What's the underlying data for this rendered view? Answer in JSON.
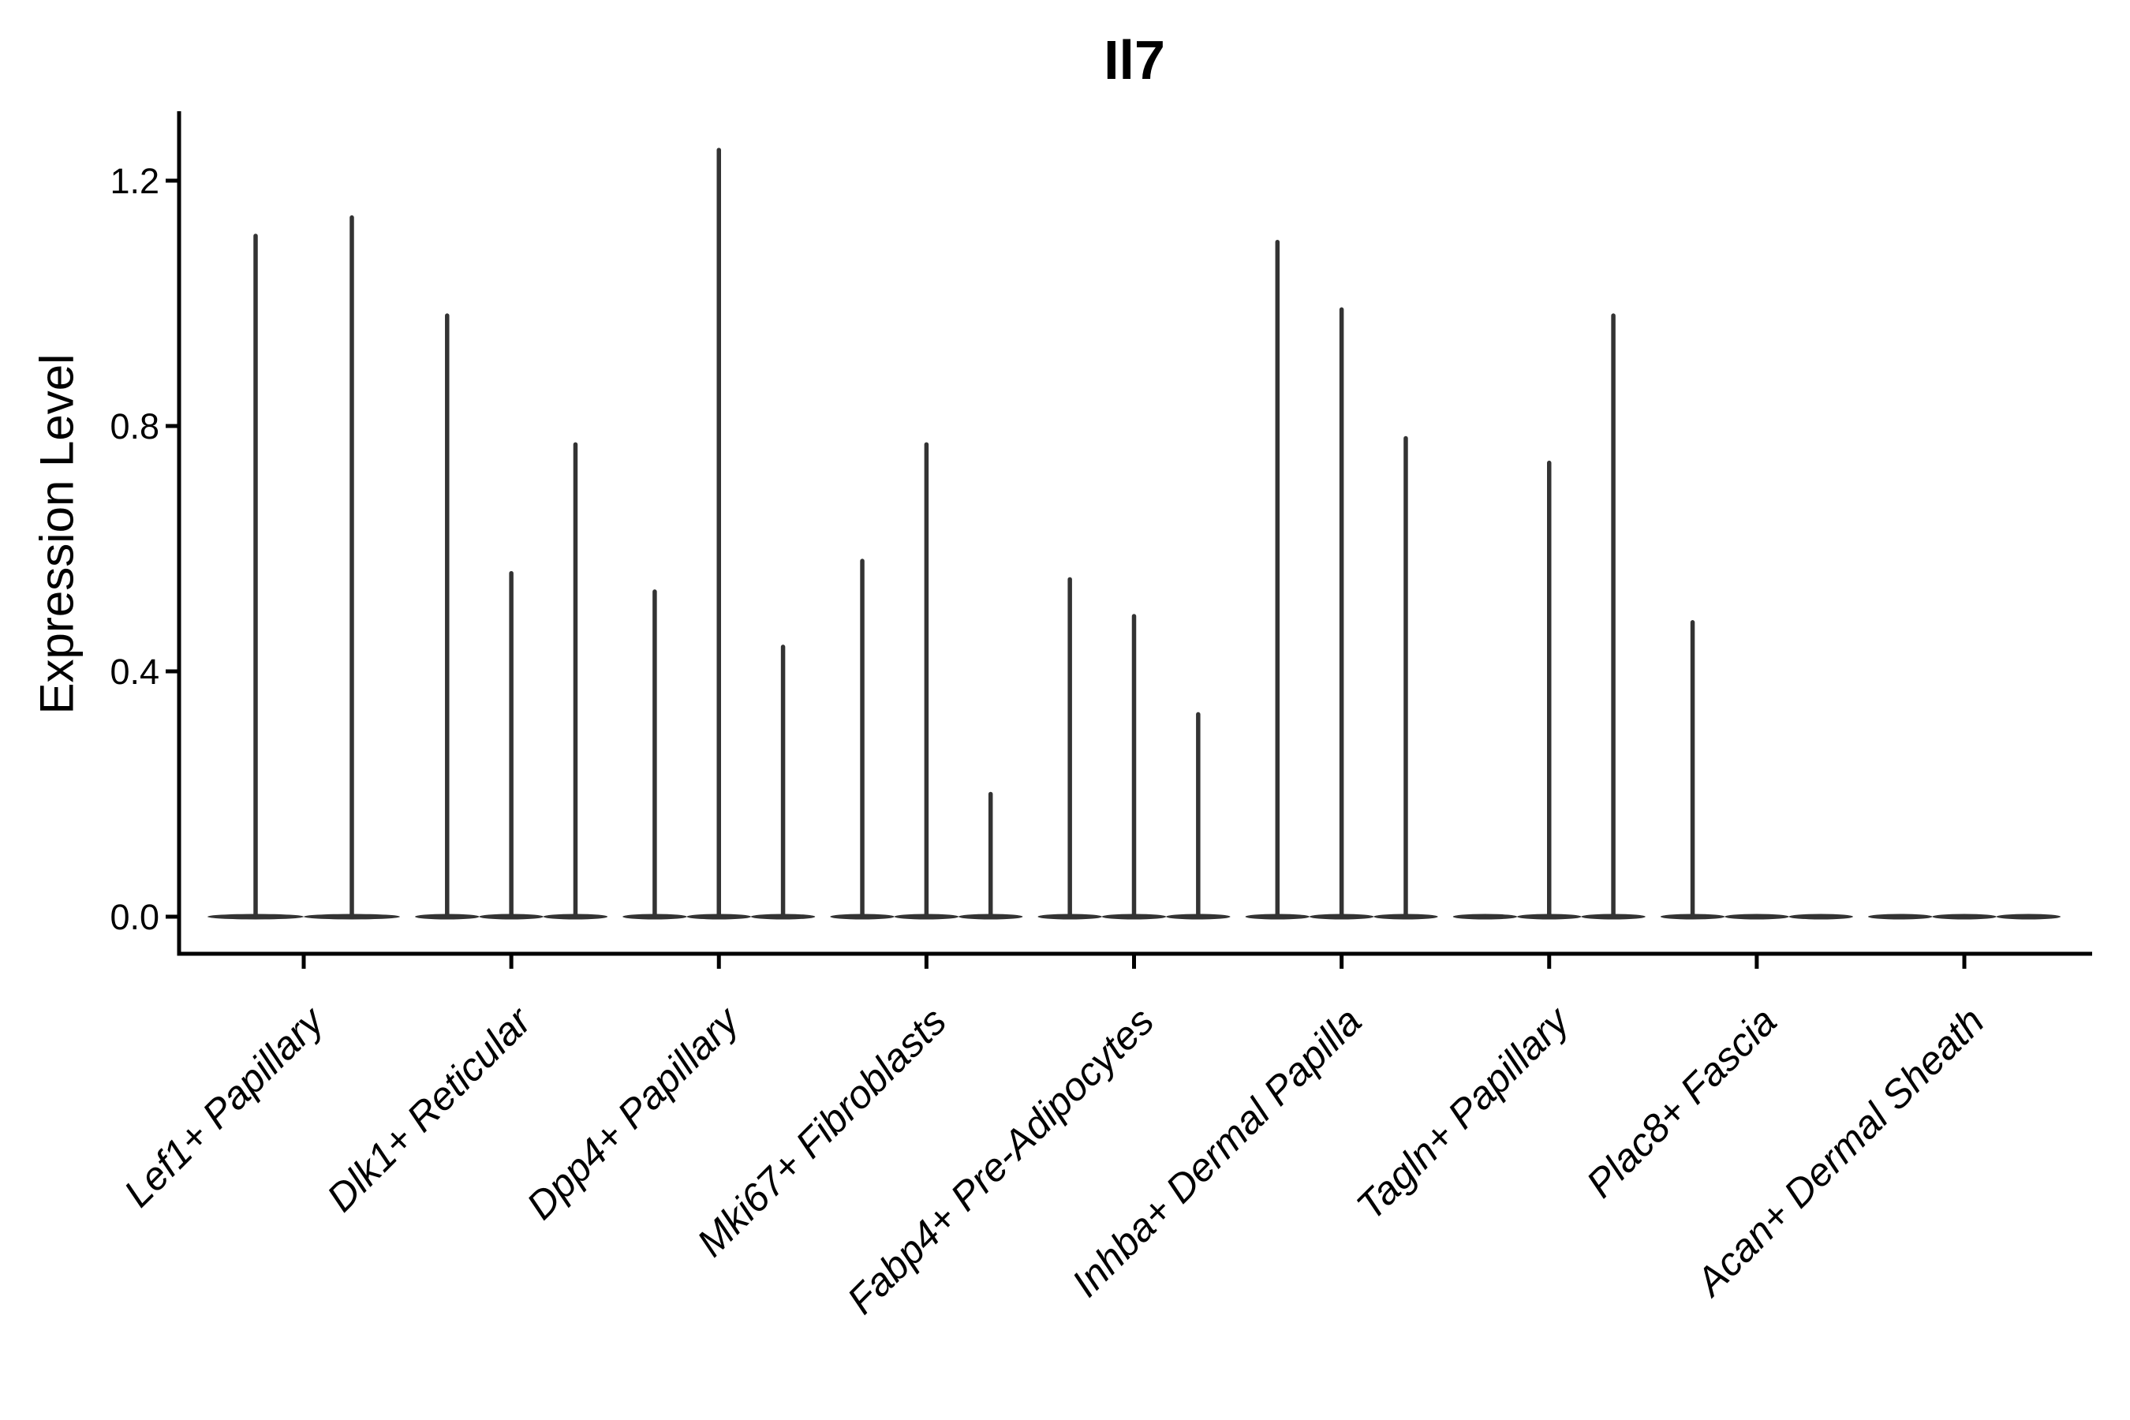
{
  "figure": {
    "background": "#ffffff"
  },
  "chart_data": {
    "type": "violin",
    "title": "Il7",
    "ylabel": "Expression Level",
    "xlabel": "",
    "ytick_labels": [
      "0.0",
      "0.4",
      "0.8",
      "1.2"
    ],
    "ytick_values": [
      0.0,
      0.4,
      0.8,
      1.2
    ],
    "ylim": [
      -0.06,
      1.31
    ],
    "baseline_value": 0.0,
    "grid": false,
    "legend": false,
    "categories": [
      "Lef1+ Papillary",
      "Dlk1+ Reticular",
      "Dpp4+ Papillary",
      "Mki67+ Fibroblasts",
      "Fabp4+ Pre-Adipocytes",
      "Inhba+ Dermal Papilla",
      "Tagln+ Papillary",
      "Plac8+ Fascia",
      "Acan+ Dermal Sheath"
    ],
    "groups": [
      {
        "label": "Lef1+ Papillary",
        "violin_max_values": [
          1.11,
          1.14
        ]
      },
      {
        "label": "Dlk1+ Reticular",
        "violin_max_values": [
          0.98,
          0.56,
          0.77
        ]
      },
      {
        "label": "Dpp4+ Papillary",
        "violin_max_values": [
          0.53,
          1.25,
          0.44
        ]
      },
      {
        "label": "Mki67+ Fibroblasts",
        "violin_max_values": [
          0.58,
          0.77,
          0.2
        ]
      },
      {
        "label": "Fabp4+ Pre-Adipocytes",
        "violin_max_values": [
          0.55,
          0.49,
          0.33
        ]
      },
      {
        "label": "Inhba+ Dermal Papilla",
        "violin_max_values": [
          1.1,
          0.99,
          0.78
        ]
      },
      {
        "label": "Tagln+ Papillary",
        "violin_max_values": [
          0.0,
          0.74,
          0.98
        ]
      },
      {
        "label": "Plac8+ Fascia",
        "violin_max_values": [
          0.48,
          0.0,
          0.0
        ]
      },
      {
        "label": "Acan+ Dermal Sheath",
        "violin_max_values": [
          0.0,
          0.0,
          0.0
        ]
      }
    ],
    "colors": {
      "violin": "#333333",
      "axis": "#000000",
      "text": "#000000",
      "background": "#ffffff"
    }
  }
}
